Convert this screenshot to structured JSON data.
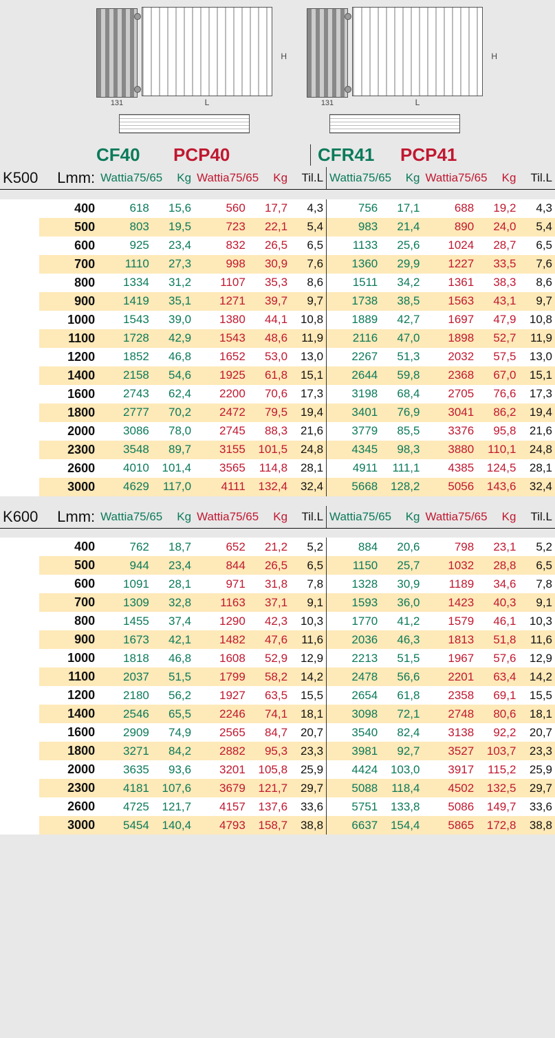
{
  "diagram": {
    "depth_label": "131",
    "H": "H",
    "L": "L"
  },
  "models": {
    "cf40": "CF40",
    "pcp40": "PCP40",
    "cfr41": "CFR41",
    "pcp41": "PCP41"
  },
  "columns": {
    "K": "K",
    "L": "L",
    "mm": "mm:",
    "Wattia": "Wattia",
    "w_sub": "75/65",
    "Kg": "Kg",
    "Til": "Til.",
    "Til_sub": "L"
  },
  "sections": [
    {
      "K": "500",
      "rows": [
        {
          "L": "400",
          "a": "618",
          "b": "15,6",
          "c": "560",
          "d": "17,7",
          "e": "4,3",
          "f": "756",
          "g": "17,1",
          "h": "688",
          "i": "19,2",
          "j": "4,3"
        },
        {
          "L": "500",
          "a": "803",
          "b": "19,5",
          "c": "723",
          "d": "22,1",
          "e": "5,4",
          "f": "983",
          "g": "21,4",
          "h": "890",
          "i": "24,0",
          "j": "5,4"
        },
        {
          "L": "600",
          "a": "925",
          "b": "23,4",
          "c": "832",
          "d": "26,5",
          "e": "6,5",
          "f": "1133",
          "g": "25,6",
          "h": "1024",
          "i": "28,7",
          "j": "6,5"
        },
        {
          "L": "700",
          "a": "1110",
          "b": "27,3",
          "c": "998",
          "d": "30,9",
          "e": "7,6",
          "f": "1360",
          "g": "29,9",
          "h": "1227",
          "i": "33,5",
          "j": "7,6"
        },
        {
          "L": "800",
          "a": "1334",
          "b": "31,2",
          "c": "1107",
          "d": "35,3",
          "e": "8,6",
          "f": "1511",
          "g": "34,2",
          "h": "1361",
          "i": "38,3",
          "j": "8,6"
        },
        {
          "L": "900",
          "a": "1419",
          "b": "35,1",
          "c": "1271",
          "d": "39,7",
          "e": "9,7",
          "f": "1738",
          "g": "38,5",
          "h": "1563",
          "i": "43,1",
          "j": "9,7"
        },
        {
          "L": "1000",
          "a": "1543",
          "b": "39,0",
          "c": "1380",
          "d": "44,1",
          "e": "10,8",
          "f": "1889",
          "g": "42,7",
          "h": "1697",
          "i": "47,9",
          "j": "10,8"
        },
        {
          "L": "1100",
          "a": "1728",
          "b": "42,9",
          "c": "1543",
          "d": "48,6",
          "e": "11,9",
          "f": "2116",
          "g": "47,0",
          "h": "1898",
          "i": "52,7",
          "j": "11,9"
        },
        {
          "L": "1200",
          "a": "1852",
          "b": "46,8",
          "c": "1652",
          "d": "53,0",
          "e": "13,0",
          "f": "2267",
          "g": "51,3",
          "h": "2032",
          "i": "57,5",
          "j": "13,0"
        },
        {
          "L": "1400",
          "a": "2158",
          "b": "54,6",
          "c": "1925",
          "d": "61,8",
          "e": "15,1",
          "f": "2644",
          "g": "59,8",
          "h": "2368",
          "i": "67,0",
          "j": "15,1"
        },
        {
          "L": "1600",
          "a": "2743",
          "b": "62,4",
          "c": "2200",
          "d": "70,6",
          "e": "17,3",
          "f": "3198",
          "g": "68,4",
          "h": "2705",
          "i": "76,6",
          "j": "17,3"
        },
        {
          "L": "1800",
          "a": "2777",
          "b": "70,2",
          "c": "2472",
          "d": "79,5",
          "e": "19,4",
          "f": "3401",
          "g": "76,9",
          "h": "3041",
          "i": "86,2",
          "j": "19,4"
        },
        {
          "L": "2000",
          "a": "3086",
          "b": "78,0",
          "c": "2745",
          "d": "88,3",
          "e": "21,6",
          "f": "3779",
          "g": "85,5",
          "h": "3376",
          "i": "95,8",
          "j": "21,6"
        },
        {
          "L": "2300",
          "a": "3548",
          "b": "89,7",
          "c": "3155",
          "d": "101,5",
          "e": "24,8",
          "f": "4345",
          "g": "98,3",
          "h": "3880",
          "i": "110,1",
          "j": "24,8"
        },
        {
          "L": "2600",
          "a": "4010",
          "b": "101,4",
          "c": "3565",
          "d": "114,8",
          "e": "28,1",
          "f": "4911",
          "g": "111,1",
          "h": "4385",
          "i": "124,5",
          "j": "28,1"
        },
        {
          "L": "3000",
          "a": "4629",
          "b": "117,0",
          "c": "4111",
          "d": "132,4",
          "e": "32,4",
          "f": "5668",
          "g": "128,2",
          "h": "5056",
          "i": "143,6",
          "j": "32,4"
        }
      ]
    },
    {
      "K": "600",
      "rows": [
        {
          "L": "400",
          "a": "762",
          "b": "18,7",
          "c": "652",
          "d": "21,2",
          "e": "5,2",
          "f": "884",
          "g": "20,6",
          "h": "798",
          "i": "23,1",
          "j": "5,2"
        },
        {
          "L": "500",
          "a": "944",
          "b": "23,4",
          "c": "844",
          "d": "26,5",
          "e": "6,5",
          "f": "1150",
          "g": "25,7",
          "h": "1032",
          "i": "28,8",
          "j": "6,5"
        },
        {
          "L": "600",
          "a": "1091",
          "b": "28,1",
          "c": "971",
          "d": "31,8",
          "e": "7,8",
          "f": "1328",
          "g": "30,9",
          "h": "1189",
          "i": "34,6",
          "j": "7,8"
        },
        {
          "L": "700",
          "a": "1309",
          "b": "32,8",
          "c": "1163",
          "d": "37,1",
          "e": "9,1",
          "f": "1593",
          "g": "36,0",
          "h": "1423",
          "i": "40,3",
          "j": "9,1"
        },
        {
          "L": "800",
          "a": "1455",
          "b": "37,4",
          "c": "1290",
          "d": "42,3",
          "e": "10,3",
          "f": "1770",
          "g": "41,2",
          "h": "1579",
          "i": "46,1",
          "j": "10,3"
        },
        {
          "L": "900",
          "a": "1673",
          "b": "42,1",
          "c": "1482",
          "d": "47,6",
          "e": "11,6",
          "f": "2036",
          "g": "46,3",
          "h": "1813",
          "i": "51,8",
          "j": "11,6"
        },
        {
          "L": "1000",
          "a": "1818",
          "b": "46,8",
          "c": "1608",
          "d": "52,9",
          "e": "12,9",
          "f": "2213",
          "g": "51,5",
          "h": "1967",
          "i": "57,6",
          "j": "12,9"
        },
        {
          "L": "1100",
          "a": "2037",
          "b": "51,5",
          "c": "1799",
          "d": "58,2",
          "e": "14,2",
          "f": "2478",
          "g": "56,6",
          "h": "2201",
          "i": "63,4",
          "j": "14,2"
        },
        {
          "L": "1200",
          "a": "2180",
          "b": "56,2",
          "c": "1927",
          "d": "63,5",
          "e": "15,5",
          "f": "2654",
          "g": "61,8",
          "h": "2358",
          "i": "69,1",
          "j": "15,5"
        },
        {
          "L": "1400",
          "a": "2546",
          "b": "65,5",
          "c": "2246",
          "d": "74,1",
          "e": "18,1",
          "f": "3098",
          "g": "72,1",
          "h": "2748",
          "i": "80,6",
          "j": "18,1"
        },
        {
          "L": "1600",
          "a": "2909",
          "b": "74,9",
          "c": "2565",
          "d": "84,7",
          "e": "20,7",
          "f": "3540",
          "g": "82,4",
          "h": "3138",
          "i": "92,2",
          "j": "20,7"
        },
        {
          "L": "1800",
          "a": "3271",
          "b": "84,2",
          "c": "2882",
          "d": "95,3",
          "e": "23,3",
          "f": "3981",
          "g": "92,7",
          "h": "3527",
          "i": "103,7",
          "j": "23,3"
        },
        {
          "L": "2000",
          "a": "3635",
          "b": "93,6",
          "c": "3201",
          "d": "105,8",
          "e": "25,9",
          "f": "4424",
          "g": "103,0",
          "h": "3917",
          "i": "115,2",
          "j": "25,9"
        },
        {
          "L": "2300",
          "a": "4181",
          "b": "107,6",
          "c": "3679",
          "d": "121,7",
          "e": "29,7",
          "f": "5088",
          "g": "118,4",
          "h": "4502",
          "i": "132,5",
          "j": "29,7"
        },
        {
          "L": "2600",
          "a": "4725",
          "b": "121,7",
          "c": "4157",
          "d": "137,6",
          "e": "33,6",
          "f": "5751",
          "g": "133,8",
          "h": "5086",
          "i": "149,7",
          "j": "33,6"
        },
        {
          "L": "3000",
          "a": "5454",
          "b": "140,4",
          "c": "4793",
          "d": "158,7",
          "e": "38,8",
          "f": "6637",
          "g": "154,4",
          "h": "5865",
          "i": "172,8",
          "j": "38,8"
        }
      ]
    }
  ],
  "colors": {
    "green": "#0B7A5A",
    "red": "#C01830",
    "black": "#111111",
    "row_even": "#FFFFFF",
    "row_odd": "#FEE9B8",
    "page_bg": "#E8E8E8"
  }
}
